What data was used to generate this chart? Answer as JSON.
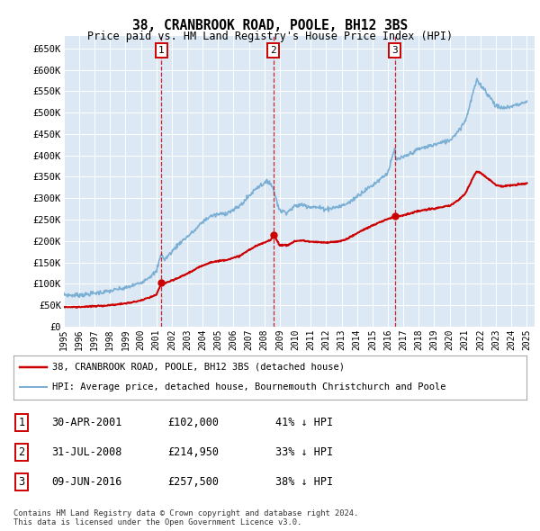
{
  "title": "38, CRANBROOK ROAD, POOLE, BH12 3BS",
  "subtitle": "Price paid vs. HM Land Registry's House Price Index (HPI)",
  "ylabel_ticks": [
    "£0",
    "£50K",
    "£100K",
    "£150K",
    "£200K",
    "£250K",
    "£300K",
    "£350K",
    "£400K",
    "£450K",
    "£500K",
    "£550K",
    "£600K",
    "£650K"
  ],
  "ytick_values": [
    0,
    50000,
    100000,
    150000,
    200000,
    250000,
    300000,
    350000,
    400000,
    450000,
    500000,
    550000,
    600000,
    650000
  ],
  "ylim": [
    0,
    680000
  ],
  "xlim_start": 1995.0,
  "xlim_end": 2025.5,
  "plot_bg_color": "#dce9f5",
  "transaction_markers": [
    {
      "year_decimal": 2001.33,
      "value": 102000,
      "label": "1"
    },
    {
      "year_decimal": 2008.58,
      "value": 214950,
      "label": "2"
    },
    {
      "year_decimal": 2016.44,
      "value": 257500,
      "label": "3"
    }
  ],
  "legend_entries": [
    {
      "label": "38, CRANBROOK ROAD, POOLE, BH12 3BS (detached house)",
      "color": "#cc0000",
      "lw": 1.5
    },
    {
      "label": "HPI: Average price, detached house, Bournemouth Christchurch and Poole",
      "color": "#7bafd4",
      "lw": 1.2
    }
  ],
  "table_rows": [
    {
      "num": "1",
      "date": "30-APR-2001",
      "price": "£102,000",
      "hpi": "41% ↓ HPI"
    },
    {
      "num": "2",
      "date": "31-JUL-2008",
      "price": "£214,950",
      "hpi": "33% ↓ HPI"
    },
    {
      "num": "3",
      "date": "09-JUN-2016",
      "price": "£257,500",
      "hpi": "38% ↓ HPI"
    }
  ],
  "footer": "Contains HM Land Registry data © Crown copyright and database right 2024.\nThis data is licensed under the Open Government Licence v3.0.",
  "marker_box_color": "#cc0000",
  "dashed_line_color": "#cc0000",
  "hpi_anchors": [
    [
      1995.0,
      75000
    ],
    [
      1995.5,
      73000
    ],
    [
      1996.0,
      74000
    ],
    [
      1996.5,
      75000
    ],
    [
      1997.0,
      78000
    ],
    [
      1997.5,
      80000
    ],
    [
      1998.0,
      83000
    ],
    [
      1998.5,
      87000
    ],
    [
      1999.0,
      90000
    ],
    [
      1999.5,
      96000
    ],
    [
      2000.0,
      103000
    ],
    [
      2000.5,
      115000
    ],
    [
      2001.0,
      128000
    ],
    [
      2001.33,
      173000
    ],
    [
      2001.5,
      155000
    ],
    [
      2002.0,
      175000
    ],
    [
      2002.5,
      195000
    ],
    [
      2003.0,
      210000
    ],
    [
      2003.5,
      225000
    ],
    [
      2004.0,
      245000
    ],
    [
      2004.5,
      258000
    ],
    [
      2005.0,
      262000
    ],
    [
      2005.5,
      265000
    ],
    [
      2006.0,
      272000
    ],
    [
      2006.5,
      285000
    ],
    [
      2007.0,
      305000
    ],
    [
      2007.5,
      325000
    ],
    [
      2008.0,
      335000
    ],
    [
      2008.33,
      340000
    ],
    [
      2008.58,
      321000
    ],
    [
      2008.75,
      300000
    ],
    [
      2009.0,
      270000
    ],
    [
      2009.5,
      268000
    ],
    [
      2010.0,
      282000
    ],
    [
      2010.5,
      285000
    ],
    [
      2011.0,
      280000
    ],
    [
      2011.5,
      278000
    ],
    [
      2012.0,
      275000
    ],
    [
      2012.5,
      278000
    ],
    [
      2013.0,
      282000
    ],
    [
      2013.5,
      290000
    ],
    [
      2014.0,
      305000
    ],
    [
      2014.5,
      318000
    ],
    [
      2015.0,
      330000
    ],
    [
      2015.5,
      345000
    ],
    [
      2016.0,
      360000
    ],
    [
      2016.44,
      415000
    ],
    [
      2016.5,
      390000
    ],
    [
      2017.0,
      395000
    ],
    [
      2017.5,
      405000
    ],
    [
      2018.0,
      415000
    ],
    [
      2018.5,
      420000
    ],
    [
      2019.0,
      425000
    ],
    [
      2019.5,
      430000
    ],
    [
      2020.0,
      435000
    ],
    [
      2020.5,
      455000
    ],
    [
      2021.0,
      480000
    ],
    [
      2021.25,
      510000
    ],
    [
      2021.5,
      545000
    ],
    [
      2021.75,
      575000
    ],
    [
      2022.0,
      565000
    ],
    [
      2022.25,
      555000
    ],
    [
      2022.5,
      540000
    ],
    [
      2022.75,
      530000
    ],
    [
      2023.0,
      515000
    ],
    [
      2023.5,
      510000
    ],
    [
      2024.0,
      515000
    ],
    [
      2024.5,
      520000
    ],
    [
      2025.0,
      525000
    ]
  ],
  "price_anchors": [
    [
      1995.0,
      46000
    ],
    [
      1995.5,
      45500
    ],
    [
      1996.0,
      46000
    ],
    [
      1996.5,
      46500
    ],
    [
      1997.0,
      47500
    ],
    [
      1997.5,
      48500
    ],
    [
      1998.0,
      50000
    ],
    [
      1998.5,
      52000
    ],
    [
      1999.0,
      54000
    ],
    [
      1999.5,
      57000
    ],
    [
      2000.0,
      61000
    ],
    [
      2000.5,
      67000
    ],
    [
      2001.0,
      74000
    ],
    [
      2001.32,
      100000
    ],
    [
      2001.33,
      102000
    ],
    [
      2001.4,
      101000
    ],
    [
      2001.5,
      100500
    ],
    [
      2002.0,
      107000
    ],
    [
      2002.5,
      115000
    ],
    [
      2003.0,
      124000
    ],
    [
      2003.5,
      133000
    ],
    [
      2004.0,
      143000
    ],
    [
      2004.5,
      150000
    ],
    [
      2005.0,
      153000
    ],
    [
      2005.5,
      156000
    ],
    [
      2006.0,
      160000
    ],
    [
      2006.5,
      167000
    ],
    [
      2007.0,
      179000
    ],
    [
      2007.5,
      189000
    ],
    [
      2008.0,
      196000
    ],
    [
      2008.4,
      203000
    ],
    [
      2008.57,
      213000
    ],
    [
      2008.58,
      214950
    ],
    [
      2008.65,
      214000
    ],
    [
      2008.75,
      205000
    ],
    [
      2009.0,
      190000
    ],
    [
      2009.5,
      190000
    ],
    [
      2010.0,
      200000
    ],
    [
      2010.5,
      201000
    ],
    [
      2011.0,
      198000
    ],
    [
      2011.5,
      197000
    ],
    [
      2012.0,
      196000
    ],
    [
      2012.5,
      198000
    ],
    [
      2013.0,
      200000
    ],
    [
      2013.5,
      208000
    ],
    [
      2014.0,
      218000
    ],
    [
      2014.5,
      228000
    ],
    [
      2015.0,
      236000
    ],
    [
      2015.5,
      244000
    ],
    [
      2016.0,
      252000
    ],
    [
      2016.43,
      256000
    ],
    [
      2016.44,
      257500
    ],
    [
      2016.5,
      258000
    ],
    [
      2017.0,
      260000
    ],
    [
      2017.5,
      265000
    ],
    [
      2018.0,
      270000
    ],
    [
      2018.5,
      273000
    ],
    [
      2019.0,
      276000
    ],
    [
      2019.5,
      279000
    ],
    [
      2020.0,
      282000
    ],
    [
      2020.5,
      294000
    ],
    [
      2021.0,
      310000
    ],
    [
      2021.25,
      328000
    ],
    [
      2021.5,
      348000
    ],
    [
      2021.75,
      363000
    ],
    [
      2022.0,
      360000
    ],
    [
      2022.25,
      352000
    ],
    [
      2022.5,
      345000
    ],
    [
      2022.75,
      339000
    ],
    [
      2023.0,
      330000
    ],
    [
      2023.5,
      328000
    ],
    [
      2024.0,
      330000
    ],
    [
      2024.5,
      332000
    ],
    [
      2025.0,
      335000
    ]
  ]
}
